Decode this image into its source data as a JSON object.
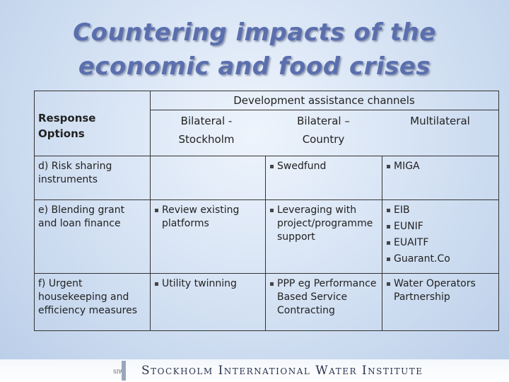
{
  "title": {
    "lines": [
      "Countering impacts of the",
      "economic and food crises"
    ]
  },
  "table": {
    "group_header": "Development assistance channels",
    "header": [
      "Response Options",
      "Bilateral - Stockholm",
      "Bilateral – Country",
      "Multilateral"
    ],
    "rows": [
      {
        "label": "d) Risk sharing instruments",
        "cells": [
          [],
          [
            "Swedfund"
          ],
          [
            "MIGA"
          ]
        ]
      },
      {
        "label": "e) Blending grant and loan finance",
        "cells": [
          [
            "Review existing platforms"
          ],
          [
            "Leveraging with project/programme support"
          ],
          [
            "EIB",
            "EUNIF",
            "EUAITF",
            "Guarant.Co"
          ]
        ]
      },
      {
        "label": "f) Urgent housekeeping and efficiency measures",
        "cells": [
          [
            "Utility twinning"
          ],
          [
            "PPP eg Performance Based Service Contracting"
          ],
          [
            "Water Operators Partnership"
          ]
        ]
      }
    ]
  },
  "footer": {
    "logo": "SIWI",
    "org": "Stockholm International Water Institute"
  }
}
